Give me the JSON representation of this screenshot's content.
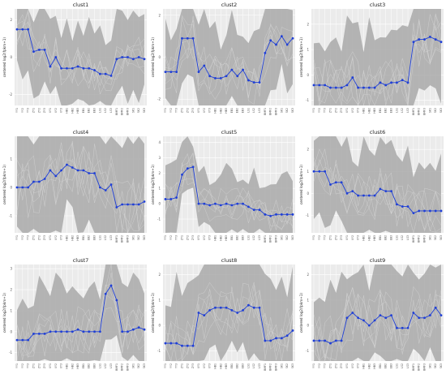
{
  "x_categories": [
    "YY1",
    "YY2",
    "YY3",
    "ZY1",
    "ZY2",
    "ZY3",
    "XY1",
    "XY2",
    "XY3",
    "HB1",
    "HB2",
    "HB3",
    "EB1",
    "EB2",
    "EB3",
    "LS1",
    "LS2",
    "LS3",
    "BMF1",
    "BMF2",
    "BMF3",
    "SK1",
    "SK2",
    "SK3"
  ],
  "ylabel": "centered log2(fpkm+1)",
  "colors": {
    "line": "#1f3fd6",
    "band": "#a9a9a9",
    "panel": "#ebebeb",
    "grid": "#ffffff",
    "text": "#222222"
  },
  "chart_data": [
    {
      "type": "line",
      "title": "clust1",
      "ylim": [
        -2.6,
        2.6
      ],
      "yticks": [
        -2,
        0,
        2
      ],
      "series": [
        {
          "values": [
            1.5,
            1.5,
            1.5,
            0.3,
            0.4,
            0.4,
            -0.5,
            0.0,
            -0.6,
            -0.6,
            -0.6,
            -0.5,
            -0.6,
            -0.6,
            -0.7,
            -0.9,
            -0.9,
            -1.0,
            -0.1,
            0.0,
            0.0,
            -0.1,
            0.0,
            -0.1
          ]
        }
      ]
    },
    {
      "type": "line",
      "title": "clust2",
      "ylim": [
        -2.3,
        2.3
      ],
      "yticks": [
        -2,
        0,
        2
      ],
      "series": [
        {
          "values": [
            -0.7,
            -0.7,
            -0.7,
            0.9,
            0.9,
            0.9,
            -0.7,
            -0.4,
            -0.9,
            -1.0,
            -1.0,
            -0.9,
            -0.6,
            -0.9,
            -0.6,
            -1.1,
            -1.2,
            -1.2,
            0.2,
            0.8,
            0.6,
            1.0,
            0.6,
            0.9
          ]
        }
      ]
    },
    {
      "type": "line",
      "title": "clust3",
      "ylim": [
        -1.2,
        2.6
      ],
      "yticks": [
        -1,
        0,
        1,
        2
      ],
      "series": [
        {
          "values": [
            -0.4,
            -0.4,
            -0.4,
            -0.5,
            -0.5,
            -0.5,
            -0.4,
            -0.1,
            -0.5,
            -0.5,
            -0.5,
            -0.5,
            -0.3,
            -0.4,
            -0.3,
            -0.3,
            -0.2,
            -0.3,
            1.3,
            1.4,
            1.4,
            1.5,
            1.4,
            1.3
          ]
        }
      ]
    },
    {
      "type": "line",
      "title": "clust4",
      "ylim": [
        -1.6,
        1.8
      ],
      "yticks": [
        -1,
        0,
        1
      ],
      "series": [
        {
          "values": [
            0.0,
            0.0,
            0.0,
            0.2,
            0.2,
            0.3,
            0.6,
            0.4,
            0.6,
            0.8,
            0.7,
            0.6,
            0.6,
            0.5,
            0.5,
            0.0,
            -0.1,
            0.1,
            -0.7,
            -0.6,
            -0.6,
            -0.6,
            -0.6,
            -0.5
          ]
        }
      ]
    },
    {
      "type": "line",
      "title": "clust5",
      "ylim": [
        -1.9,
        4.4
      ],
      "yticks": [
        -1,
        0,
        1,
        2,
        3,
        4
      ],
      "series": [
        {
          "values": [
            0.3,
            0.3,
            0.4,
            1.9,
            2.3,
            2.4,
            0.0,
            0.0,
            -0.1,
            0.0,
            -0.1,
            0.0,
            -0.1,
            0.0,
            0.0,
            -0.2,
            -0.4,
            -0.4,
            -0.7,
            -0.8,
            -0.7,
            -0.7,
            -0.7,
            -0.7
          ]
        }
      ]
    },
    {
      "type": "line",
      "title": "clust6",
      "ylim": [
        -1.8,
        2.6
      ],
      "yticks": [
        -1,
        0,
        1,
        2
      ],
      "series": [
        {
          "values": [
            1.0,
            1.0,
            1.0,
            0.4,
            0.5,
            0.5,
            0.0,
            0.1,
            -0.1,
            -0.1,
            -0.1,
            -0.1,
            0.2,
            0.1,
            0.1,
            -0.5,
            -0.6,
            -0.6,
            -0.9,
            -0.8,
            -0.8,
            -0.8,
            -0.8,
            -0.8
          ]
        }
      ]
    },
    {
      "type": "line",
      "title": "clust7",
      "ylim": [
        -1.4,
        3.2
      ],
      "yticks": [
        -1,
        0,
        1,
        2,
        3
      ],
      "series": [
        {
          "values": [
            -0.4,
            -0.4,
            -0.4,
            -0.1,
            -0.1,
            -0.1,
            0.0,
            0.0,
            0.0,
            0.0,
            0.0,
            0.1,
            0.0,
            0.0,
            0.0,
            0.0,
            1.8,
            2.2,
            1.5,
            0.0,
            0.0,
            0.1,
            0.2,
            0.1
          ]
        }
      ]
    },
    {
      "type": "line",
      "title": "clust8",
      "ylim": [
        -1.4,
        2.4
      ],
      "yticks": [
        -1,
        0,
        1,
        2
      ],
      "series": [
        {
          "values": [
            -0.7,
            -0.7,
            -0.7,
            -0.8,
            -0.8,
            -0.8,
            0.5,
            0.4,
            0.6,
            0.7,
            0.7,
            0.7,
            0.6,
            0.5,
            0.6,
            0.8,
            0.7,
            0.7,
            -0.6,
            -0.6,
            -0.5,
            -0.5,
            -0.4,
            -0.2
          ]
        }
      ]
    },
    {
      "type": "line",
      "title": "clust9",
      "ylim": [
        -1.4,
        2.4
      ],
      "yticks": [
        -1,
        0,
        1,
        2
      ],
      "series": [
        {
          "values": [
            -0.6,
            -0.6,
            -0.6,
            -0.7,
            -0.6,
            -0.6,
            0.3,
            0.5,
            0.3,
            0.2,
            0.0,
            0.2,
            0.4,
            0.3,
            0.4,
            -0.1,
            -0.1,
            -0.1,
            0.5,
            0.3,
            0.3,
            0.4,
            0.7,
            0.4
          ]
        }
      ]
    }
  ]
}
